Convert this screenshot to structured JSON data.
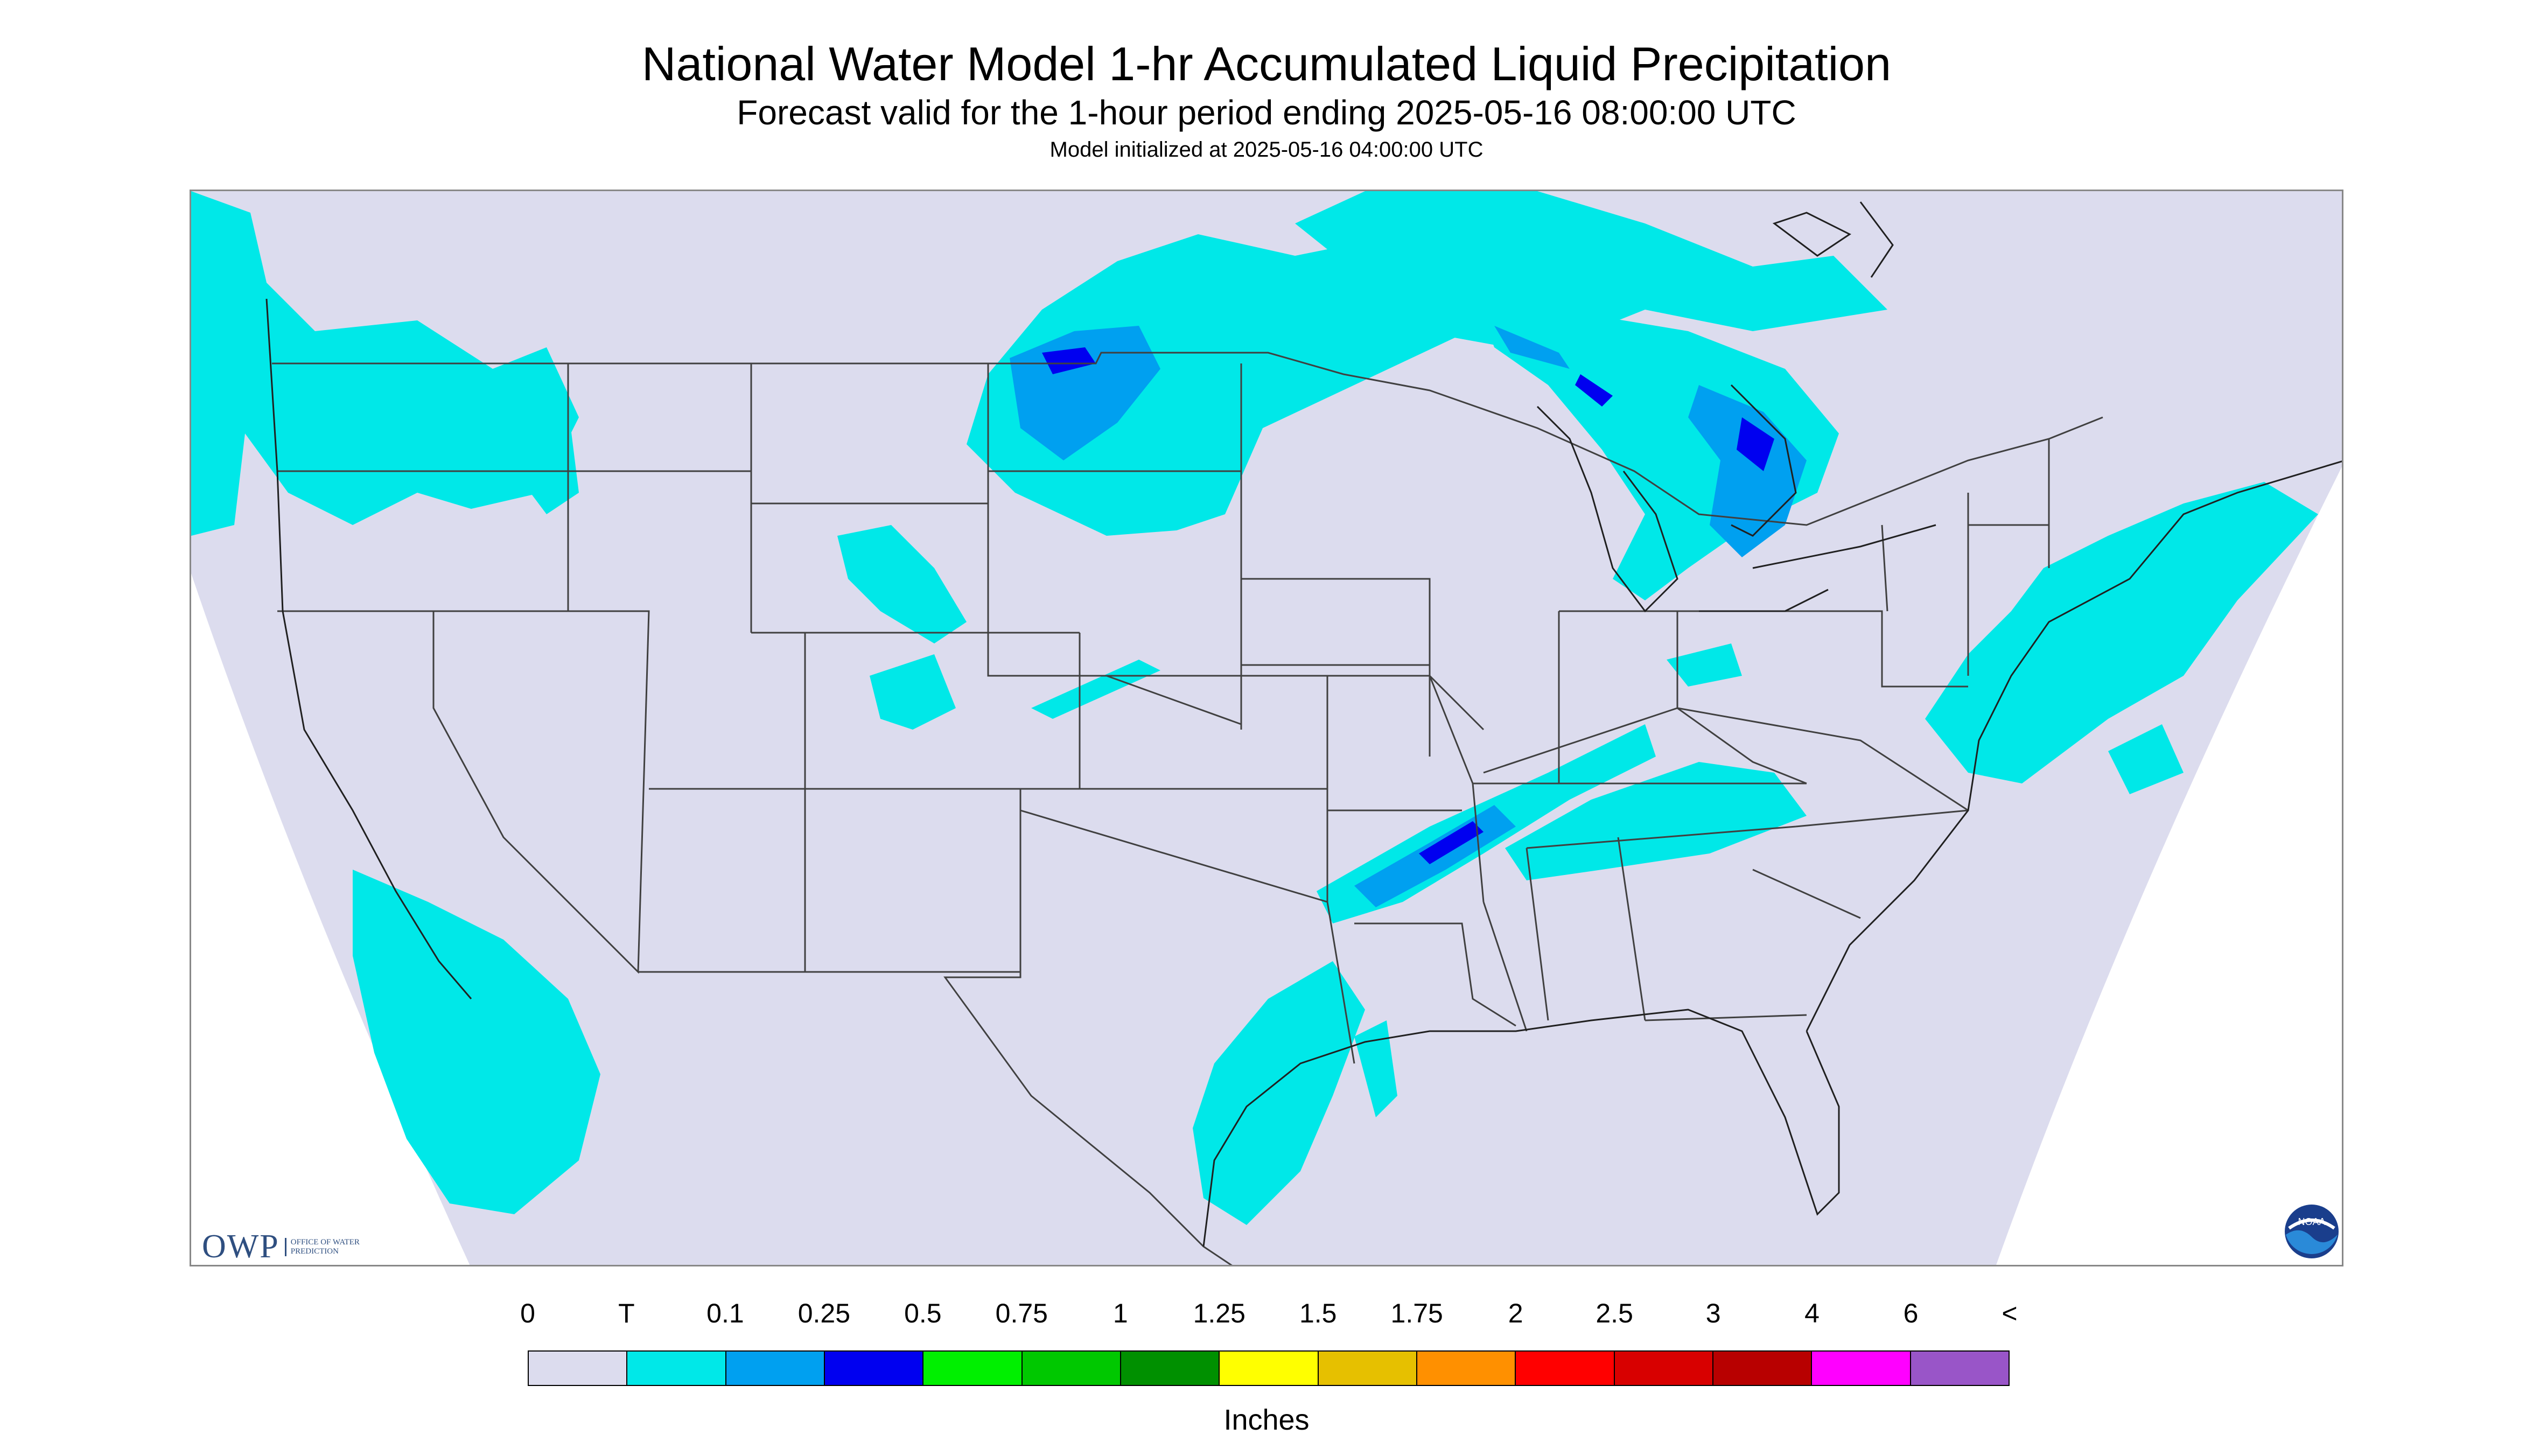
{
  "title": "National Water Model 1-hr Accumulated Liquid Precipitation",
  "subtitle": "Forecast valid for the 1-hour period ending 2025-05-16 08:00:00 UTC",
  "init_line": "Model initialized at 2025-05-16 04:00:00 UTC",
  "logos": {
    "owp": "OWP",
    "owp_sub": "OFFICE OF WATER PREDICTION",
    "noaa": "NOAA"
  },
  "legend": {
    "labels": [
      "0",
      "T",
      "0.1",
      "0.25",
      "0.5",
      "0.75",
      "1",
      "1.25",
      "1.5",
      "1.75",
      "2",
      "2.5",
      "3",
      "4",
      "6",
      "<"
    ],
    "colors": [
      "#dcdcee",
      "#00e8e8",
      "#00a0f0",
      "#0000f0",
      "#00f000",
      "#00c800",
      "#009000",
      "#ffff00",
      "#e6c000",
      "#ff9000",
      "#ff0000",
      "#d80000",
      "#b80000",
      "#ff00ff",
      "#9955c8"
    ],
    "units": "Inches"
  },
  "map_colors": {
    "background": "#dcdcee",
    "trace": "#00e8e8",
    "light": "#00a0f0",
    "moderate": "#0000f0",
    "border": "#404040"
  }
}
